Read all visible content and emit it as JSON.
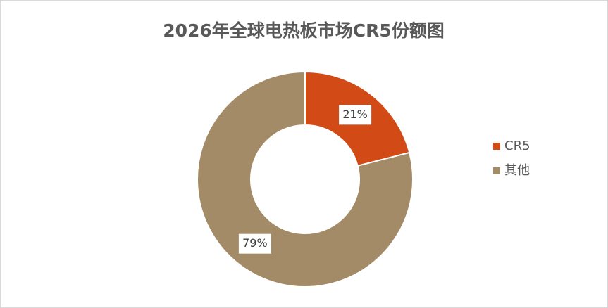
{
  "chart_data": {
    "type": "donut",
    "title": "2026年全球电热板市场CR5份额图",
    "categories": [
      "CR5",
      "其他"
    ],
    "values": [
      21,
      79
    ],
    "value_labels": [
      "21%",
      "79%"
    ],
    "colors": [
      "#d24b17",
      "#a38b68"
    ],
    "legend": "right"
  }
}
